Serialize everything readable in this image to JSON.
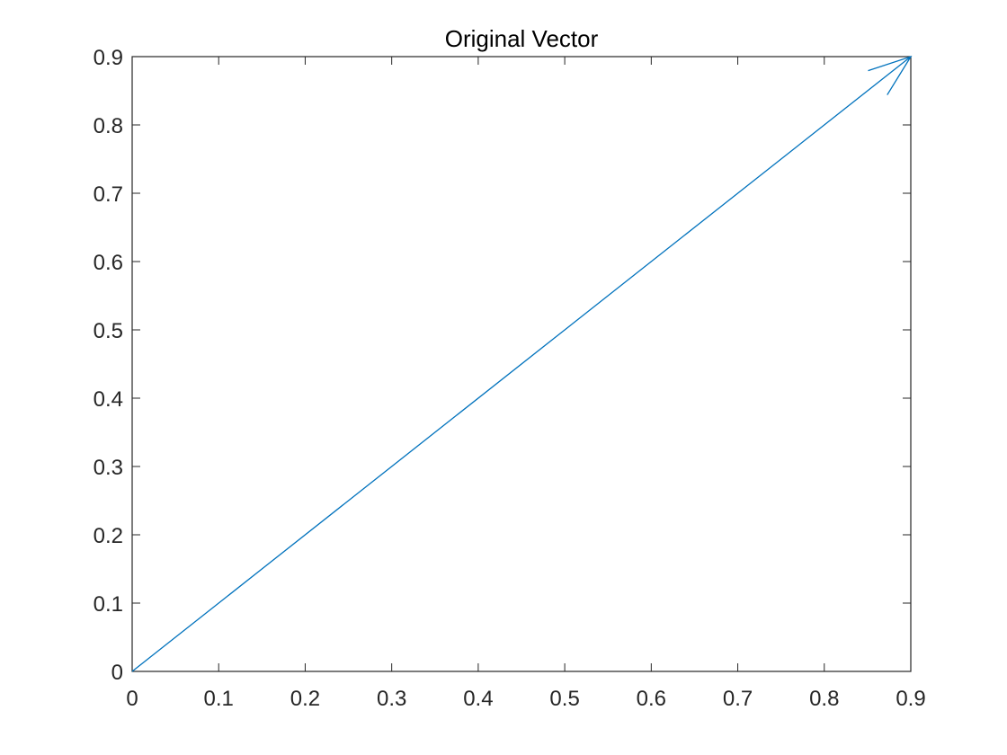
{
  "chart_data": {
    "type": "line",
    "title": "Original Vector",
    "xlabel": "",
    "ylabel": "",
    "xlim": [
      0,
      0.9
    ],
    "ylim": [
      0,
      0.9
    ],
    "xticks": [
      "0",
      "0.1",
      "0.2",
      "0.3",
      "0.4",
      "0.5",
      "0.6",
      "0.7",
      "0.8",
      "0.9"
    ],
    "yticks": [
      "0",
      "0.1",
      "0.2",
      "0.3",
      "0.4",
      "0.5",
      "0.6",
      "0.7",
      "0.8",
      "0.9"
    ],
    "grid": false,
    "series": [
      {
        "kind": "vector",
        "start": [
          0,
          0
        ],
        "end": [
          0.9,
          0.9
        ],
        "arrowhead": true,
        "color": "#0072BD"
      }
    ]
  }
}
